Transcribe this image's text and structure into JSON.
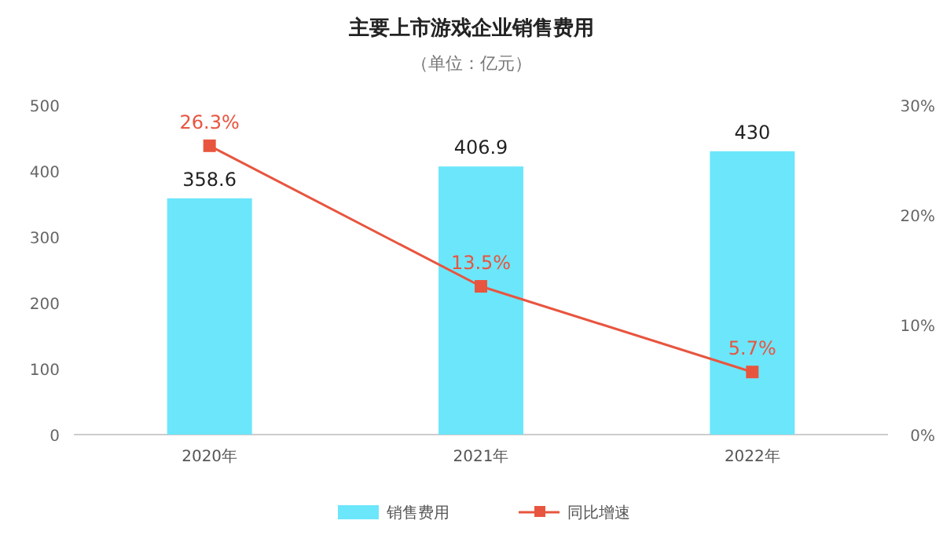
{
  "chart_data": {
    "type": "bar",
    "title": "主要上市游戏企业销售费用",
    "subtitle": "（单位：亿元）",
    "categories": [
      "2020年",
      "2021年",
      "2022年"
    ],
    "series": [
      {
        "name": "销售费用",
        "color": "#6ce6fa",
        "values": [
          358.6,
          406.9,
          430
        ],
        "value_labels": [
          "358.6",
          "406.9",
          "430"
        ]
      },
      {
        "name": "同比增速",
        "type": "line",
        "axis": "y2",
        "color": "#e8553f",
        "marker": "square",
        "values": [
          26.3,
          13.5,
          5.7
        ],
        "value_labels": [
          "26.3%",
          "13.5%",
          "5.7%"
        ]
      }
    ],
    "ylim": [
      0,
      500
    ],
    "yticks": [
      0,
      100,
      200,
      300,
      400,
      500
    ],
    "y2lim": [
      0,
      30
    ],
    "y2ticks": [
      {
        "value": 0,
        "label": "0%"
      },
      {
        "value": 10,
        "label": "10%"
      },
      {
        "value": 20,
        "label": "20%"
      },
      {
        "value": 30,
        "label": "30%"
      }
    ],
    "legend": "bottom"
  }
}
